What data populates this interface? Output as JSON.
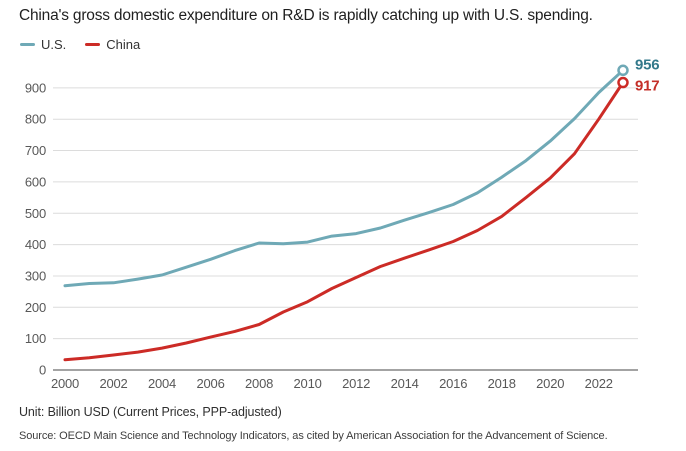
{
  "title": "China's gross domestic expenditure on R&D is rapidly catching up with U.S. spending.",
  "legend": [
    {
      "label": "U.S.",
      "color": "#6fa9b6"
    },
    {
      "label": "China",
      "color": "#cc2b26"
    }
  ],
  "footer": {
    "unit": "Unit: Billion USD (Current Prices, PPP-adjusted)",
    "source": "Source: OECD Main Science and Technology Indicators, as cited by American Association for the Advancement of Science."
  },
  "chart_data": {
    "type": "line",
    "title": "China's gross domestic expenditure on R&D is rapidly catching up with U.S. spending.",
    "xlabel": "",
    "ylabel": "Billion USD (Current Prices, PPP-adjusted)",
    "x": [
      2000,
      2001,
      2002,
      2003,
      2004,
      2005,
      2006,
      2007,
      2008,
      2009,
      2010,
      2011,
      2012,
      2013,
      2014,
      2015,
      2016,
      2017,
      2018,
      2019,
      2020,
      2021,
      2022,
      2023
    ],
    "series": [
      {
        "name": "U.S.",
        "color": "#6fa9b6",
        "label_color": "#33798b",
        "end_label": "956",
        "values": [
          269,
          276,
          278,
          290,
          303,
          328,
          353,
          381,
          405,
          403,
          408,
          427,
          435,
          453,
          478,
          502,
          528,
          565,
          615,
          668,
          730,
          802,
          885,
          956
        ]
      },
      {
        "name": "China",
        "color": "#cc2b26",
        "label_color": "#c42f29",
        "end_label": "917",
        "values": [
          33,
          39,
          48,
          57,
          70,
          86,
          105,
          123,
          145,
          185,
          218,
          260,
          295,
          330,
          357,
          383,
          410,
          445,
          490,
          550,
          612,
          690,
          800,
          917
        ]
      }
    ],
    "x_ticks": [
      2000,
      2002,
      2004,
      2006,
      2008,
      2010,
      2012,
      2014,
      2016,
      2018,
      2020,
      2022
    ],
    "y_ticks": [
      0,
      100,
      200,
      300,
      400,
      500,
      600,
      700,
      800,
      900
    ],
    "ylim": [
      0,
      1000
    ],
    "grid": "horizontal",
    "legend_position": "top-left",
    "grid_color": "#dcdcdc",
    "axis_color": "#a3a3a3",
    "tick_label_color": "#585858"
  }
}
